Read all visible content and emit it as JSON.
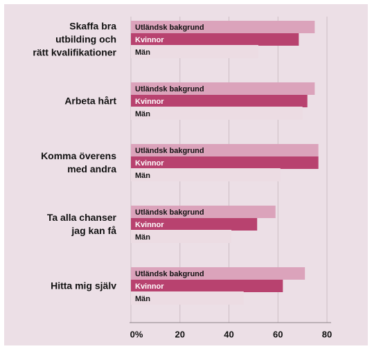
{
  "chart_data": {
    "type": "hbar",
    "categories": [
      "Skaffa bra\nutbilding och\nrätt kvalifikationer",
      "Arbeta hårt",
      "Komma överens\nmed andra",
      "Ta alla chanser\njag kan få",
      "Hitta mig själv"
    ],
    "series": [
      {
        "name": "Utländsk bakgrund",
        "color": "#dba3bb",
        "values": [
          75,
          75,
          76.5,
          59,
          71
        ]
      },
      {
        "name": "Kvinnor",
        "color": "#b8426f",
        "values": [
          68.5,
          72,
          76.5,
          51.5,
          62
        ]
      },
      {
        "name": "Män",
        "color": "#ecdce3",
        "values": [
          52,
          70,
          61,
          41,
          46
        ]
      }
    ],
    "xlim": [
      0,
      80
    ],
    "xticks": [
      {
        "value": 0,
        "label": "0%"
      },
      20,
      40,
      60,
      80
    ],
    "grid": true
  }
}
